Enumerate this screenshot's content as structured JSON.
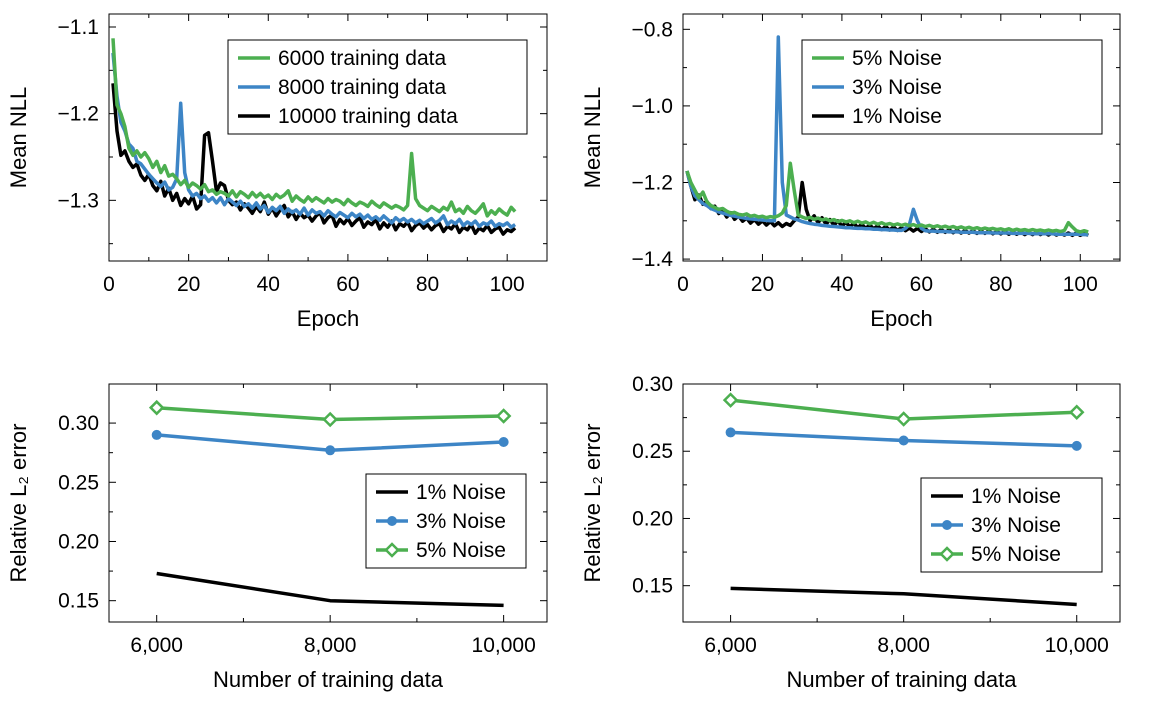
{
  "colors": {
    "green": "#4caf50",
    "blue": "#3d85c6",
    "black": "#000000"
  },
  "chart_data": [
    {
      "type": "line",
      "xlabel": "Epoch",
      "ylabel": "Mean NLL",
      "xlim": [
        0,
        110
      ],
      "ylim": [
        -1.37,
        -1.085
      ],
      "xticks": [
        "0",
        "20",
        "40",
        "60",
        "80",
        "100"
      ],
      "yticks": [
        "−1.1",
        "−1.2",
        "−1.3"
      ],
      "grid": false,
      "legend": "top-right",
      "x": [
        1,
        2,
        3,
        4,
        5,
        6,
        7,
        8,
        9,
        10,
        11,
        12,
        13,
        14,
        15,
        16,
        17,
        18,
        19,
        20,
        21,
        22,
        23,
        24,
        25,
        26,
        27,
        28,
        29,
        30,
        31,
        32,
        33,
        34,
        35,
        36,
        37,
        38,
        39,
        40,
        41,
        42,
        43,
        44,
        45,
        46,
        47,
        48,
        49,
        50,
        51,
        52,
        53,
        54,
        55,
        56,
        57,
        58,
        59,
        60,
        61,
        62,
        63,
        64,
        65,
        66,
        67,
        68,
        69,
        70,
        71,
        72,
        73,
        74,
        75,
        76,
        77,
        78,
        79,
        80,
        81,
        82,
        83,
        84,
        85,
        86,
        87,
        88,
        89,
        90,
        91,
        92,
        93,
        94,
        95,
        96,
        97,
        98,
        99,
        100,
        101,
        102
      ],
      "series": [
        {
          "name": "6000 training data",
          "color": "#4caf50",
          "values": [
            -1.113,
            -1.19,
            -1.2,
            -1.215,
            -1.24,
            -1.248,
            -1.243,
            -1.25,
            -1.245,
            -1.252,
            -1.262,
            -1.255,
            -1.268,
            -1.26,
            -1.272,
            -1.27,
            -1.275,
            -1.282,
            -1.277,
            -1.285,
            -1.28,
            -1.283,
            -1.287,
            -1.282,
            -1.29,
            -1.288,
            -1.293,
            -1.29,
            -1.292,
            -1.295,
            -1.289,
            -1.296,
            -1.29,
            -1.293,
            -1.297,
            -1.291,
            -1.296,
            -1.292,
            -1.297,
            -1.294,
            -1.299,
            -1.293,
            -1.297,
            -1.294,
            -1.289,
            -1.301,
            -1.295,
            -1.299,
            -1.302,
            -1.296,
            -1.301,
            -1.297,
            -1.3,
            -1.303,
            -1.298,
            -1.302,
            -1.299,
            -1.301,
            -1.305,
            -1.299,
            -1.303,
            -1.306,
            -1.302,
            -1.304,
            -1.307,
            -1.301,
            -1.305,
            -1.308,
            -1.303,
            -1.306,
            -1.309,
            -1.306,
            -1.308,
            -1.311,
            -1.306,
            -1.246,
            -1.298,
            -1.306,
            -1.309,
            -1.312,
            -1.307,
            -1.31,
            -1.313,
            -1.308,
            -1.311,
            -1.302,
            -1.313,
            -1.31,
            -1.315,
            -1.307,
            -1.312,
            -1.315,
            -1.31,
            -1.304,
            -1.318,
            -1.312,
            -1.316,
            -1.31,
            -1.314,
            -1.317,
            -1.308,
            -1.313
          ]
        },
        {
          "name": "8000 training data",
          "color": "#3d85c6",
          "values": [
            -1.13,
            -1.18,
            -1.21,
            -1.22,
            -1.235,
            -1.24,
            -1.255,
            -1.258,
            -1.264,
            -1.27,
            -1.275,
            -1.28,
            -1.284,
            -1.279,
            -1.288,
            -1.285,
            -1.275,
            -1.188,
            -1.268,
            -1.288,
            -1.295,
            -1.292,
            -1.298,
            -1.295,
            -1.301,
            -1.297,
            -1.303,
            -1.297,
            -1.305,
            -1.298,
            -1.302,
            -1.306,
            -1.301,
            -1.307,
            -1.304,
            -1.309,
            -1.303,
            -1.31,
            -1.306,
            -1.314,
            -1.308,
            -1.312,
            -1.307,
            -1.315,
            -1.31,
            -1.314,
            -1.311,
            -1.316,
            -1.309,
            -1.317,
            -1.311,
            -1.315,
            -1.313,
            -1.318,
            -1.312,
            -1.316,
            -1.319,
            -1.314,
            -1.317,
            -1.32,
            -1.315,
            -1.319,
            -1.316,
            -1.321,
            -1.317,
            -1.322,
            -1.319,
            -1.323,
            -1.318,
            -1.322,
            -1.326,
            -1.32,
            -1.324,
            -1.321,
            -1.325,
            -1.322,
            -1.326,
            -1.323,
            -1.327,
            -1.324,
            -1.321,
            -1.326,
            -1.323,
            -1.318,
            -1.328,
            -1.324,
            -1.327,
            -1.322,
            -1.329,
            -1.325,
            -1.328,
            -1.324,
            -1.33,
            -1.326,
            -1.328,
            -1.324,
            -1.33,
            -1.327,
            -1.329,
            -1.326,
            -1.331,
            -1.328
          ]
        },
        {
          "name": "10000 training data",
          "color": "#000000",
          "values": [
            -1.165,
            -1.22,
            -1.248,
            -1.243,
            -1.255,
            -1.262,
            -1.258,
            -1.271,
            -1.277,
            -1.27,
            -1.283,
            -1.289,
            -1.278,
            -1.295,
            -1.286,
            -1.3,
            -1.292,
            -1.306,
            -1.298,
            -1.304,
            -1.295,
            -1.31,
            -1.305,
            -1.225,
            -1.222,
            -1.255,
            -1.29,
            -1.28,
            -1.283,
            -1.3,
            -1.305,
            -1.302,
            -1.311,
            -1.304,
            -1.309,
            -1.315,
            -1.307,
            -1.313,
            -1.302,
            -1.316,
            -1.309,
            -1.318,
            -1.311,
            -1.306,
            -1.319,
            -1.313,
            -1.322,
            -1.315,
            -1.32,
            -1.317,
            -1.324,
            -1.318,
            -1.314,
            -1.326,
            -1.32,
            -1.317,
            -1.33,
            -1.322,
            -1.327,
            -1.321,
            -1.329,
            -1.324,
            -1.32,
            -1.331,
            -1.325,
            -1.328,
            -1.322,
            -1.333,
            -1.326,
            -1.331,
            -1.324,
            -1.334,
            -1.327,
            -1.33,
            -1.325,
            -1.335,
            -1.329,
            -1.326,
            -1.332,
            -1.328,
            -1.334,
            -1.329,
            -1.327,
            -1.336,
            -1.33,
            -1.333,
            -1.327,
            -1.337,
            -1.331,
            -1.334,
            -1.328,
            -1.338,
            -1.332,
            -1.335,
            -1.329,
            -1.337,
            -1.333,
            -1.331,
            -1.339,
            -1.334,
            -1.336,
            -1.332
          ]
        }
      ]
    },
    {
      "type": "line",
      "xlabel": "Epoch",
      "ylabel": "Mean NLL",
      "xlim": [
        0,
        110
      ],
      "ylim": [
        -1.405,
        -0.76
      ],
      "xticks": [
        "0",
        "20",
        "40",
        "60",
        "80",
        "100"
      ],
      "yticks": [
        "−0.8",
        "−1.0",
        "−1.2",
        "−1.4"
      ],
      "grid": false,
      "legend": "top-right",
      "x": [
        1,
        2,
        3,
        4,
        5,
        6,
        7,
        8,
        9,
        10,
        11,
        12,
        13,
        14,
        15,
        16,
        17,
        18,
        19,
        20,
        21,
        22,
        23,
        24,
        25,
        26,
        27,
        28,
        29,
        30,
        31,
        32,
        33,
        34,
        35,
        36,
        37,
        38,
        39,
        40,
        41,
        42,
        43,
        44,
        45,
        46,
        47,
        48,
        49,
        50,
        51,
        52,
        53,
        54,
        55,
        56,
        57,
        58,
        59,
        60,
        61,
        62,
        63,
        64,
        65,
        66,
        67,
        68,
        69,
        70,
        71,
        72,
        73,
        74,
        75,
        76,
        77,
        78,
        79,
        80,
        81,
        82,
        83,
        84,
        85,
        86,
        87,
        88,
        89,
        90,
        91,
        92,
        93,
        94,
        95,
        96,
        97,
        98,
        99,
        100,
        101,
        102
      ],
      "series": [
        {
          "name": "5% Noise",
          "color": "#4caf50",
          "values": [
            -1.17,
            -1.2,
            -1.22,
            -1.24,
            -1.225,
            -1.25,
            -1.26,
            -1.265,
            -1.27,
            -1.268,
            -1.275,
            -1.28,
            -1.278,
            -1.283,
            -1.285,
            -1.282,
            -1.288,
            -1.286,
            -1.29,
            -1.288,
            -1.292,
            -1.289,
            -1.291,
            -1.287,
            -1.28,
            -1.26,
            -1.15,
            -1.22,
            -1.285,
            -1.29,
            -1.294,
            -1.291,
            -1.296,
            -1.293,
            -1.298,
            -1.295,
            -1.3,
            -1.297,
            -1.302,
            -1.299,
            -1.303,
            -1.3,
            -1.305,
            -1.301,
            -1.306,
            -1.303,
            -1.308,
            -1.304,
            -1.309,
            -1.305,
            -1.31,
            -1.307,
            -1.311,
            -1.308,
            -1.312,
            -1.309,
            -1.313,
            -1.31,
            -1.314,
            -1.311,
            -1.315,
            -1.312,
            -1.316,
            -1.313,
            -1.317,
            -1.314,
            -1.318,
            -1.315,
            -1.319,
            -1.316,
            -1.32,
            -1.317,
            -1.321,
            -1.318,
            -1.322,
            -1.319,
            -1.322,
            -1.32,
            -1.323,
            -1.321,
            -1.324,
            -1.321,
            -1.325,
            -1.322,
            -1.325,
            -1.323,
            -1.326,
            -1.323,
            -1.326,
            -1.324,
            -1.327,
            -1.324,
            -1.327,
            -1.325,
            -1.328,
            -1.325,
            -1.305,
            -1.316,
            -1.326,
            -1.329,
            -1.326,
            -1.329
          ]
        },
        {
          "name": "3% Noise",
          "color": "#3d85c6",
          "values": [
            -1.17,
            -1.21,
            -1.235,
            -1.245,
            -1.255,
            -1.26,
            -1.268,
            -1.272,
            -1.277,
            -1.28,
            -1.283,
            -1.286,
            -1.288,
            -1.29,
            -1.292,
            -1.294,
            -1.295,
            -1.296,
            -1.297,
            -1.298,
            -1.299,
            -1.3,
            -1.3,
            -0.82,
            -1.2,
            -1.285,
            -1.29,
            -1.295,
            -1.298,
            -1.302,
            -1.305,
            -1.307,
            -1.309,
            -1.31,
            -1.312,
            -1.313,
            -1.314,
            -1.315,
            -1.316,
            -1.317,
            -1.318,
            -1.318,
            -1.319,
            -1.32,
            -1.32,
            -1.321,
            -1.321,
            -1.322,
            -1.322,
            -1.323,
            -1.323,
            -1.324,
            -1.324,
            -1.325,
            -1.325,
            -1.32,
            -1.31,
            -1.27,
            -1.3,
            -1.32,
            -1.326,
            -1.327,
            -1.327,
            -1.328,
            -1.328,
            -1.328,
            -1.329,
            -1.329,
            -1.329,
            -1.33,
            -1.33,
            -1.33,
            -1.33,
            -1.331,
            -1.331,
            -1.331,
            -1.331,
            -1.332,
            -1.332,
            -1.332,
            -1.332,
            -1.332,
            -1.333,
            -1.333,
            -1.333,
            -1.333,
            -1.333,
            -1.334,
            -1.334,
            -1.334,
            -1.334,
            -1.334,
            -1.334,
            -1.335,
            -1.335,
            -1.335,
            -1.335,
            -1.335,
            -1.335,
            -1.335,
            -1.336,
            -1.336
          ]
        },
        {
          "name": "1% Noise",
          "color": "#000000",
          "values": [
            -1.17,
            -1.21,
            -1.245,
            -1.233,
            -1.257,
            -1.249,
            -1.268,
            -1.262,
            -1.281,
            -1.273,
            -1.29,
            -1.279,
            -1.296,
            -1.287,
            -1.301,
            -1.293,
            -1.306,
            -1.297,
            -1.309,
            -1.3,
            -1.311,
            -1.302,
            -1.313,
            -1.305,
            -1.315,
            -1.307,
            -1.312,
            -1.3,
            -1.29,
            -1.2,
            -1.27,
            -1.3,
            -1.287,
            -1.305,
            -1.292,
            -1.309,
            -1.297,
            -1.312,
            -1.3,
            -1.314,
            -1.304,
            -1.316,
            -1.306,
            -1.318,
            -1.309,
            -1.32,
            -1.311,
            -1.321,
            -1.313,
            -1.323,
            -1.315,
            -1.324,
            -1.316,
            -1.325,
            -1.318,
            -1.326,
            -1.319,
            -1.327,
            -1.32,
            -1.328,
            -1.321,
            -1.329,
            -1.322,
            -1.33,
            -1.323,
            -1.33,
            -1.324,
            -1.331,
            -1.325,
            -1.332,
            -1.325,
            -1.332,
            -1.326,
            -1.333,
            -1.327,
            -1.333,
            -1.327,
            -1.334,
            -1.328,
            -1.334,
            -1.328,
            -1.335,
            -1.329,
            -1.335,
            -1.329,
            -1.336,
            -1.33,
            -1.336,
            -1.33,
            -1.336,
            -1.331,
            -1.337,
            -1.331,
            -1.337,
            -1.332,
            -1.337,
            -1.332,
            -1.338,
            -1.332,
            -1.338,
            -1.333,
            -1.338
          ]
        }
      ]
    },
    {
      "type": "line",
      "xlabel": "Number of training data",
      "ylabel": "Relative L₂ error",
      "categories": [
        "6,000",
        "8,000",
        "10,000"
      ],
      "x": [
        6000,
        8000,
        10000
      ],
      "xlim": [
        5450,
        10500
      ],
      "ylim": [
        0.132,
        0.333
      ],
      "yticks": [
        "0.15",
        "0.20",
        "0.25",
        "0.30"
      ],
      "grid": false,
      "legend": "bottom-right",
      "series": [
        {
          "name": "1% Noise",
          "color": "#000000",
          "marker": "none",
          "values": [
            0.173,
            0.15,
            0.146
          ]
        },
        {
          "name": "3% Noise",
          "color": "#3d85c6",
          "marker": "circle",
          "values": [
            0.29,
            0.277,
            0.284
          ]
        },
        {
          "name": "5% Noise",
          "color": "#4caf50",
          "marker": "diamond",
          "values": [
            0.313,
            0.303,
            0.306
          ]
        }
      ]
    },
    {
      "type": "line",
      "xlabel": "Number of training data",
      "ylabel": "Relative L₂ error",
      "categories": [
        "6,000",
        "8,000",
        "10,000"
      ],
      "x": [
        6000,
        8000,
        10000
      ],
      "xlim": [
        5450,
        10500
      ],
      "ylim": [
        0.123,
        0.3
      ],
      "yticks": [
        "0.15",
        "0.20",
        "0.25",
        "0.30"
      ],
      "grid": false,
      "legend": "bottom-right",
      "series": [
        {
          "name": "1% Noise",
          "color": "#000000",
          "marker": "none",
          "values": [
            0.148,
            0.144,
            0.136
          ]
        },
        {
          "name": "3% Noise",
          "color": "#3d85c6",
          "marker": "circle",
          "values": [
            0.264,
            0.258,
            0.254
          ]
        },
        {
          "name": "5% Noise",
          "color": "#4caf50",
          "marker": "diamond",
          "values": [
            0.288,
            0.274,
            0.279
          ]
        }
      ]
    }
  ]
}
